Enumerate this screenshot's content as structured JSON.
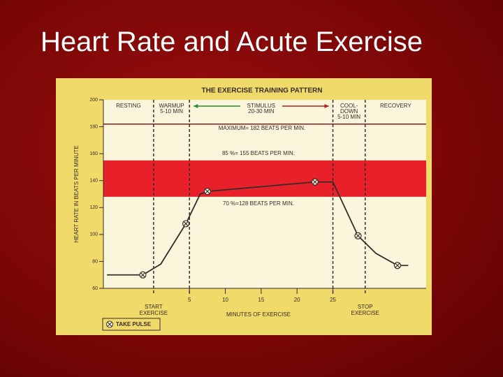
{
  "title": "Heart Rate and Acute Exercise",
  "chart_data": {
    "type": "line",
    "title": "THE EXERCISE TRAINING PATTERN",
    "ylabel": "HEART RATE IN BEATS PER MINUTE",
    "xlabel": "MINUTES OF EXERCISE",
    "xlim": [
      -7,
      38
    ],
    "ylim": [
      60,
      200
    ],
    "xticks": [
      5,
      10,
      15,
      20,
      25
    ],
    "yticks": [
      60,
      80,
      100,
      120,
      140,
      160,
      180,
      200
    ],
    "series": [
      {
        "name": "HEART RATE",
        "color": "#3a2a2a",
        "x": [
          -6.5,
          -1.5,
          1,
          4.5,
          6.5,
          7.5,
          22.5,
          25,
          28.5,
          31,
          34,
          35.5
        ],
        "values": [
          70,
          70,
          78,
          108,
          130,
          132,
          139,
          139,
          99,
          86,
          77,
          77
        ]
      },
      {
        "name": "TAKE PULSE",
        "color": "#3a2a2a",
        "x": [
          -1.5,
          4.5,
          7.5,
          22.5,
          28.5,
          34
        ],
        "values": [
          70,
          108,
          132,
          139,
          99,
          77
        ]
      }
    ],
    "band": {
      "from": 128,
      "to": 155,
      "color": "#e8202a",
      "labels": [
        "85 %= 155 BEATS PER MIN.",
        "70 %=128 BEATS PER MIN."
      ]
    },
    "hlines": [
      {
        "value": 182,
        "label": "MAXIMUM= 182 BEATS PER MIN.",
        "color": "#8b1a1a"
      }
    ],
    "vlines": [
      {
        "x": 0,
        "label": [
          "START",
          "EXERCISE"
        ]
      },
      {
        "x": 5,
        "label": []
      },
      {
        "x": 25,
        "label": []
      },
      {
        "x": 29.5,
        "label": [
          "STOP",
          "EXERCISE"
        ]
      }
    ],
    "phases": [
      {
        "from": -7,
        "to": 0,
        "label": [
          "RESTING"
        ]
      },
      {
        "from": 0,
        "to": 5,
        "label": [
          "WARMUP",
          "5-10 MIN"
        ]
      },
      {
        "from": 5,
        "to": 25,
        "label": [
          "STIMULUS",
          "20-30 MIN"
        ]
      },
      {
        "from": 25,
        "to": 29.5,
        "label": [
          "COOL-",
          "DOWN",
          "5-10 MIN"
        ]
      },
      {
        "from": 29.5,
        "to": 38,
        "label": [
          "RECOVERY"
        ]
      }
    ]
  }
}
